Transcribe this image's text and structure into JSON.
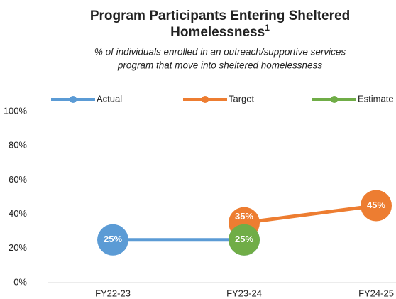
{
  "chart_data": {
    "type": "line",
    "title": "Program Participants Entering Sheltered Homelessness",
    "title_footnote": "1",
    "subtitle": "% of individuals enrolled in an outreach/supportive services program that move into sheltered homelessness",
    "categories": [
      "FY22-23",
      "FY23-24",
      "FY24-25"
    ],
    "series": [
      {
        "name": "Actual",
        "color": "#5b9bd5",
        "values": [
          25,
          25,
          null
        ],
        "value_labels": [
          "25%",
          "25%",
          null
        ]
      },
      {
        "name": "Target",
        "color": "#ed7d31",
        "values": [
          null,
          35,
          45
        ],
        "value_labels": [
          null,
          "35%",
          "45%"
        ]
      },
      {
        "name": "Estimate",
        "color": "#70ad47",
        "values": [
          null,
          25,
          null
        ],
        "value_labels": [
          null,
          "25%",
          null
        ]
      }
    ],
    "ylim": [
      0,
      100
    ],
    "yticks": [
      {
        "value": 0,
        "label": "0%"
      },
      {
        "value": 20,
        "label": "20%"
      },
      {
        "value": 40,
        "label": "40%"
      },
      {
        "value": 60,
        "label": "60%"
      },
      {
        "value": 80,
        "label": "80%"
      },
      {
        "value": 100,
        "label": "100%"
      }
    ],
    "grid": false,
    "legend": "top"
  }
}
